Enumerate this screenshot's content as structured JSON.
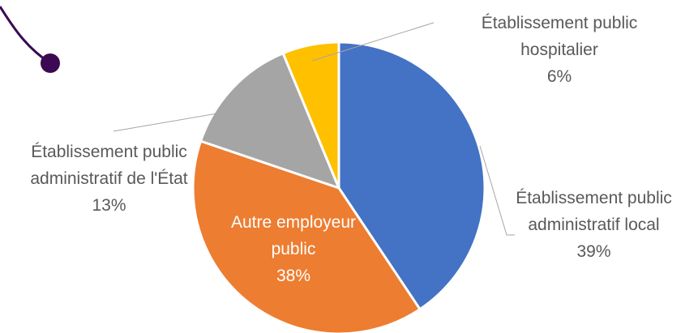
{
  "chart_data": {
    "type": "pie",
    "categories": [
      "Établissement public administratif local",
      "Autre employeur public",
      "Établissement public administratif de l'État",
      "Établissement public hospitalier"
    ],
    "values": [
      39,
      38,
      13,
      6
    ],
    "value_labels": [
      "39%",
      "38%",
      "13%",
      "6%"
    ],
    "colors": [
      "#4472c4",
      "#ed7d31",
      "#a5a5a5",
      "#ffc000"
    ]
  }
}
